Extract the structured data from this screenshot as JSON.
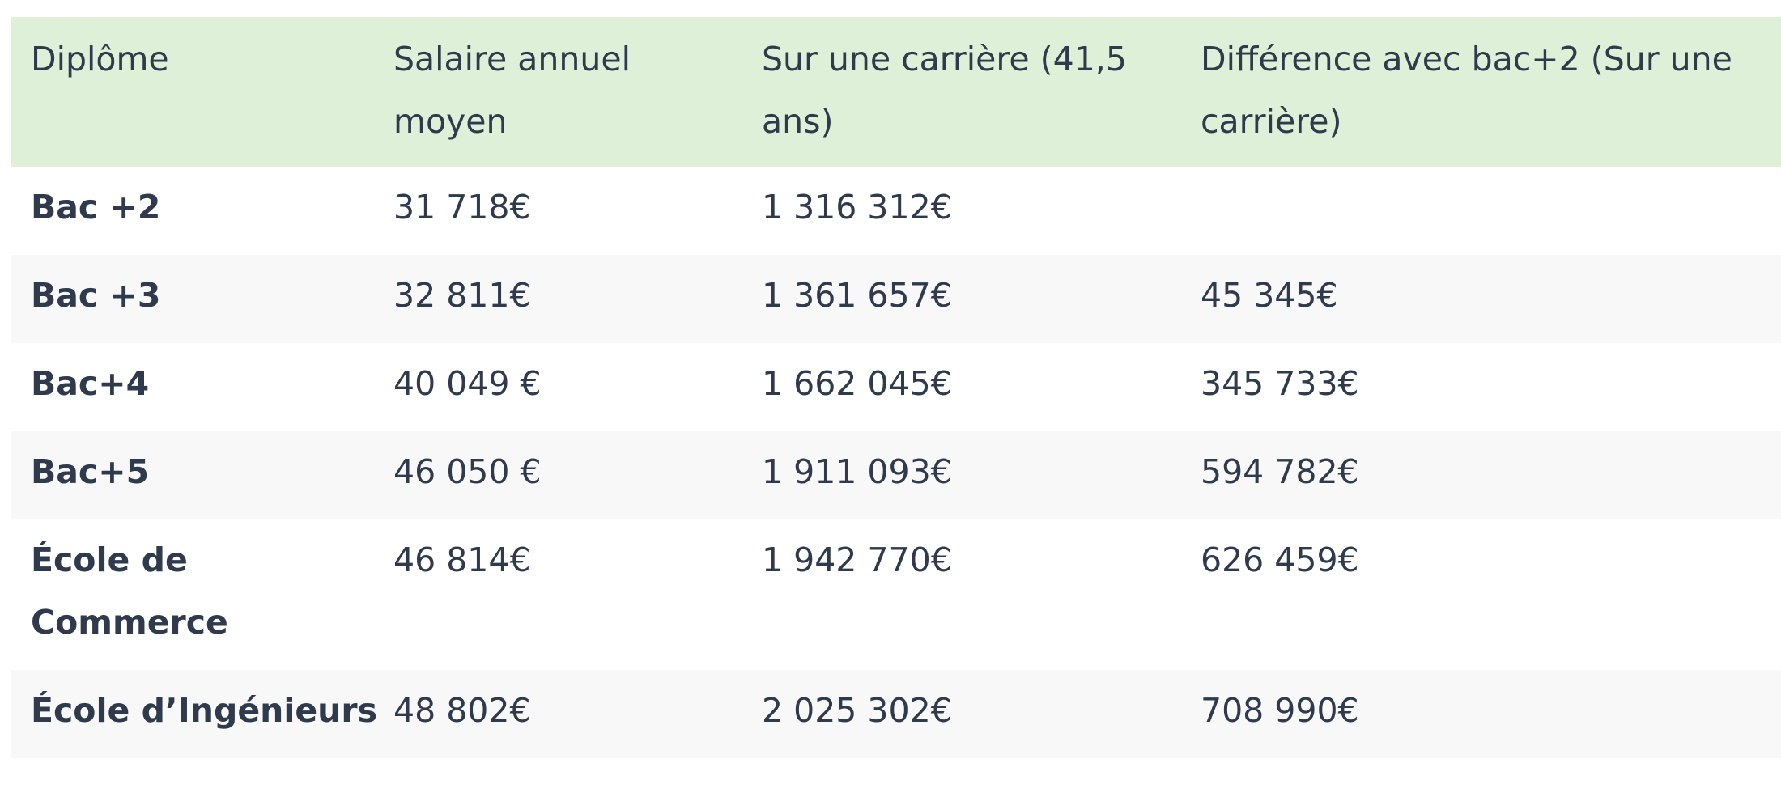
{
  "table": {
    "headers": [
      "Diplôme",
      "Salaire annuel moyen",
      "Sur une carrière (41,5 ans)",
      "Différence avec bac+2 (Sur une carrière)"
    ],
    "rows": [
      [
        "Bac +2",
        "31 718€",
        "1 316 312€",
        ""
      ],
      [
        "Bac +3",
        "32 811€",
        "1 361 657€",
        "45 345€"
      ],
      [
        "Bac+4",
        "40 049 €",
        "1 662 045€",
        "345 733€"
      ],
      [
        "Bac+5",
        "46 050 €",
        "1 911 093€",
        "594 782€"
      ],
      [
        "École de Commerce",
        "46 814€",
        "1 942 770€",
        "626 459€"
      ],
      [
        "École d’Ingénieurs",
        "48 802€",
        "2 025 302€",
        "708 990€"
      ]
    ]
  },
  "colors": {
    "header_background": "#dff0d8",
    "stripe_background": "#f8f8f8",
    "text": "#2f3a4c"
  }
}
